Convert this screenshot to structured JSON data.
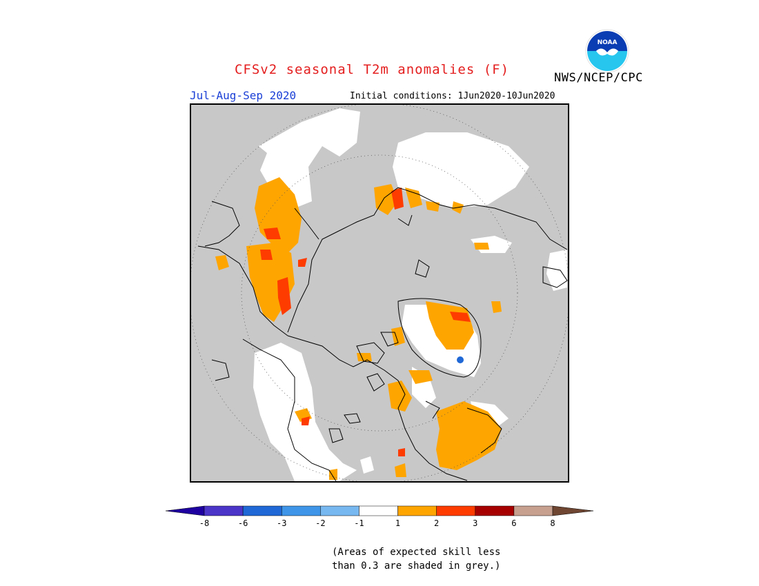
{
  "title": "CFSv2 seasonal T2m anomalies (F)",
  "agency": "NWS/NCEP/CPC",
  "logo_text": "NOAA",
  "period": "Jul-Aug-Sep 2020",
  "initial_conditions": "Initial conditions: 1Jun2020-10Jun2020",
  "legend": {
    "ticks": [
      "-8",
      "-6",
      "-3",
      "-2",
      "-1",
      "1",
      "2",
      "3",
      "6",
      "8"
    ],
    "colors": [
      "#1e00a0",
      "#4a35c8",
      "#1f68d6",
      "#3f95e8",
      "#78b8f0",
      "#ffffff",
      "#ffa500",
      "#ff3c00",
      "#a60000",
      "#c8a090",
      "#6e4632"
    ]
  },
  "note": [
    "(Areas of expected skill less",
    "than 0.3 are shaded in grey.)"
  ],
  "colors": {
    "grey_mask": "#c8c8c8",
    "near_normal": "#ffffff",
    "warm_1_2": "#ffa500",
    "warm_2_3": "#ff3c00",
    "cool": "#3f95e8"
  }
}
